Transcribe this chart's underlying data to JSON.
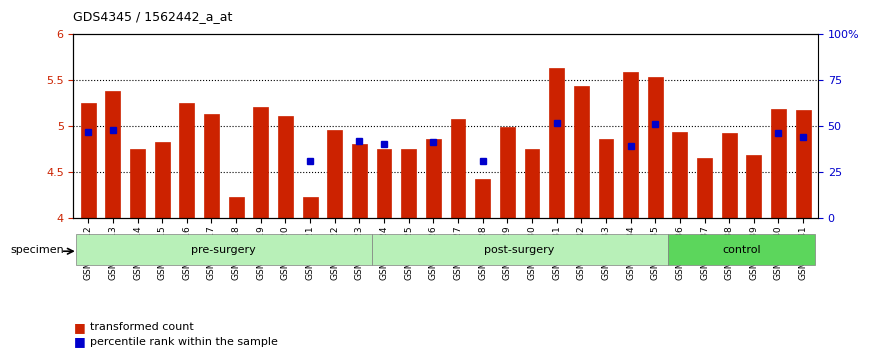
{
  "title": "GDS4345 / 1562442_a_at",
  "categories": [
    "GSM842012",
    "GSM842013",
    "GSM842014",
    "GSM842015",
    "GSM842016",
    "GSM842017",
    "GSM842018",
    "GSM842019",
    "GSM842020",
    "GSM842021",
    "GSM842022",
    "GSM842023",
    "GSM842024",
    "GSM842025",
    "GSM842026",
    "GSM842027",
    "GSM842028",
    "GSM842029",
    "GSM842030",
    "GSM842031",
    "GSM842032",
    "GSM842033",
    "GSM842034",
    "GSM842035",
    "GSM842036",
    "GSM842037",
    "GSM842038",
    "GSM842039",
    "GSM842040",
    "GSM842041"
  ],
  "red_values": [
    5.25,
    5.38,
    4.75,
    4.82,
    5.25,
    5.13,
    4.22,
    5.2,
    5.1,
    4.22,
    4.95,
    4.8,
    4.75,
    4.75,
    4.85,
    5.07,
    4.42,
    4.98,
    4.75,
    5.62,
    5.43,
    4.85,
    5.58,
    5.53,
    4.93,
    4.65,
    4.92,
    4.68,
    5.18,
    5.17
  ],
  "blue_values": [
    4.93,
    4.95,
    null,
    null,
    null,
    null,
    null,
    null,
    null,
    4.62,
    null,
    4.83,
    4.8,
    null,
    4.82,
    null,
    4.62,
    null,
    null,
    5.03,
    null,
    null,
    4.78,
    5.02,
    null,
    null,
    null,
    null,
    4.92,
    4.88
  ],
  "groups": [
    {
      "label": "pre-surgery",
      "start": 0,
      "end": 11,
      "color": "#90ee90"
    },
    {
      "label": "post-surgery",
      "start": 12,
      "end": 23,
      "color": "#90ee90"
    },
    {
      "label": "control",
      "start": 24,
      "end": 29,
      "color": "#4caf50"
    }
  ],
  "ylim": [
    4.0,
    6.0
  ],
  "yticks": [
    4.0,
    4.5,
    5.0,
    5.5,
    6.0
  ],
  "ytick_labels": [
    "4",
    "4.5",
    "5",
    "5.5",
    "6"
  ],
  "right_yticks": [
    0,
    25,
    50,
    75,
    100
  ],
  "right_ytick_labels": [
    "0",
    "25",
    "50",
    "75",
    "100%"
  ],
  "bar_color": "#cc2200",
  "dot_color": "#0000cc",
  "grid_color": "#000000",
  "bg_color": "#ffffff",
  "plot_bg_color": "#ffffff",
  "tick_label_color_left": "#cc2200",
  "tick_label_color_right": "#0000cc",
  "bar_bottom": 4.0,
  "specimen_label": "specimen",
  "legend_items": [
    "transformed count",
    "percentile rank within the sample"
  ]
}
